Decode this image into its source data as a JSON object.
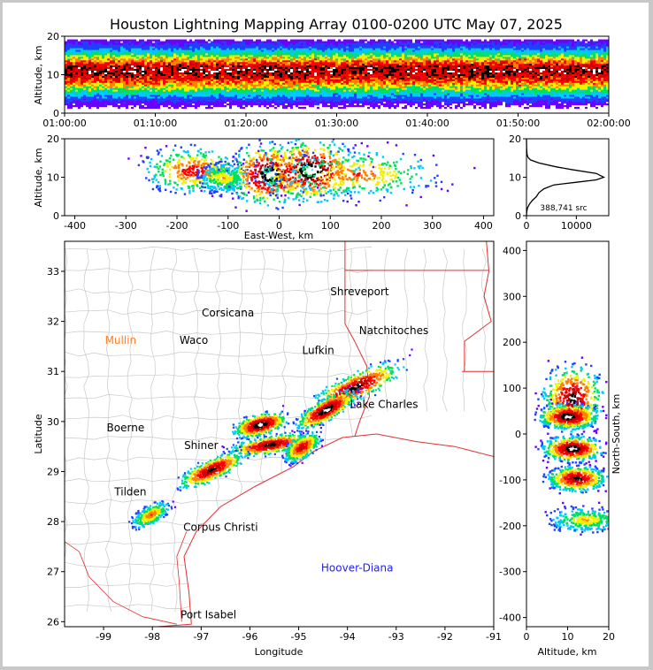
{
  "chart_data": [
    {
      "type": "heatmap",
      "id": "time-altitude",
      "title": "Houston Lightning Mapping Array 0100-0200 UTC May 07, 2025",
      "ylabel": "Altitude, km",
      "xlim": [
        "01:00:00",
        "02:00:00"
      ],
      "ylim": [
        0,
        20
      ],
      "x_ticks": [
        "01:00:00",
        "01:10:00",
        "01:20:00",
        "01:30:00",
        "01:40:00",
        "01:50:00",
        "02:00:00"
      ],
      "y_ticks": [
        0,
        10,
        20
      ],
      "density_profile": [
        {
          "alt": 1,
          "level": 0.05
        },
        {
          "alt": 3,
          "level": 0.15
        },
        {
          "alt": 5,
          "level": 0.35
        },
        {
          "alt": 7,
          "level": 0.6
        },
        {
          "alt": 9,
          "level": 0.85
        },
        {
          "alt": 10,
          "level": 0.95
        },
        {
          "alt": 11,
          "level": 1.0
        },
        {
          "alt": 12,
          "level": 0.95
        },
        {
          "alt": 13,
          "level": 0.8
        },
        {
          "alt": 15,
          "level": 0.5
        },
        {
          "alt": 17,
          "level": 0.25
        },
        {
          "alt": 19,
          "level": 0.1
        }
      ]
    },
    {
      "type": "heatmap",
      "id": "east-west-altitude",
      "xlabel": "East-West, km",
      "ylabel": "Altitude, km",
      "xlim": [
        -420,
        420
      ],
      "ylim": [
        0,
        20
      ],
      "x_ticks": [
        -400,
        -300,
        -200,
        -100,
        0,
        100,
        200,
        300,
        400
      ],
      "y_ticks": [
        0,
        10,
        20
      ],
      "clusters": [
        {
          "x": -170,
          "alt": 12,
          "sx": 30,
          "sy": 3,
          "level": 0.7
        },
        {
          "x": -110,
          "alt": 10,
          "sx": 15,
          "sy": 2,
          "level": 0.5
        },
        {
          "x": -20,
          "alt": 11,
          "sx": 25,
          "sy": 4,
          "level": 1.0
        },
        {
          "x": 60,
          "alt": 12,
          "sx": 30,
          "sy": 4,
          "level": 1.0
        },
        {
          "x": 150,
          "alt": 11,
          "sx": 50,
          "sy": 3,
          "level": 0.6
        }
      ]
    },
    {
      "type": "line",
      "id": "altitude-histogram",
      "annotation": "388,741 src",
      "xlim": [
        0,
        16500
      ],
      "ylim": [
        0,
        20
      ],
      "x_ticks": [
        0,
        10000
      ],
      "y_ticks": [
        0,
        10,
        20
      ],
      "points": [
        [
          0,
          0
        ],
        [
          50,
          1
        ],
        [
          200,
          2
        ],
        [
          600,
          3
        ],
        [
          1200,
          4
        ],
        [
          2000,
          5
        ],
        [
          2500,
          6
        ],
        [
          3500,
          7
        ],
        [
          5500,
          8
        ],
        [
          10000,
          8.7
        ],
        [
          14000,
          9.3
        ],
        [
          15500,
          10
        ],
        [
          14000,
          11
        ],
        [
          9000,
          12
        ],
        [
          6000,
          12.7
        ],
        [
          2500,
          13.7
        ],
        [
          800,
          14.5
        ],
        [
          300,
          15.2
        ],
        [
          100,
          16
        ],
        [
          30,
          17.5
        ],
        [
          0,
          20
        ]
      ]
    },
    {
      "type": "scatter",
      "id": "plan-view",
      "xlabel": "Longitude",
      "ylabel": "Latitude",
      "xlim": [
        -99.8,
        -91
      ],
      "ylim": [
        25.9,
        33.6
      ],
      "x_ticks": [
        -99,
        -98,
        -97,
        -96,
        -95,
        -94,
        -93,
        -92,
        -91
      ],
      "y_ticks": [
        26,
        27,
        28,
        29,
        30,
        31,
        32,
        33
      ],
      "cities": [
        {
          "name": "Shreveport",
          "lon": -93.75,
          "lat": 32.52,
          "color": "#000000"
        },
        {
          "name": "Corsicana",
          "lon": -96.45,
          "lat": 32.1,
          "color": "#000000"
        },
        {
          "name": "Mullin",
          "lon": -98.65,
          "lat": 31.55,
          "color": "#ff7f2a"
        },
        {
          "name": "Waco",
          "lon": -97.15,
          "lat": 31.55,
          "color": "#000000"
        },
        {
          "name": "Natchitoches",
          "lon": -93.05,
          "lat": 31.75,
          "color": "#000000"
        },
        {
          "name": "Lufkin",
          "lon": -94.6,
          "lat": 31.35,
          "color": "#000000"
        },
        {
          "name": "Lake Charles",
          "lon": -93.25,
          "lat": 30.27,
          "color": "#000000"
        },
        {
          "name": "Boerne",
          "lon": -98.55,
          "lat": 29.8,
          "color": "#000000"
        },
        {
          "name": "Shiner",
          "lon": -97.0,
          "lat": 29.45,
          "color": "#000000"
        },
        {
          "name": "Tilden",
          "lon": -98.45,
          "lat": 28.52,
          "color": "#000000"
        },
        {
          "name": "Corpus Christi",
          "lon": -96.6,
          "lat": 27.82,
          "color": "#000000"
        },
        {
          "name": "Hoover-Diana",
          "lon": -93.8,
          "lat": 27.0,
          "color": "#1f1fff"
        },
        {
          "name": "Port Isabel",
          "lon": -96.85,
          "lat": 26.07,
          "color": "#000000"
        }
      ],
      "storms": [
        {
          "lon": -93.85,
          "lat": 30.7,
          "w": 1.7,
          "h": 0.45,
          "rot": -25,
          "level": 0.9
        },
        {
          "lon": -94.45,
          "lat": 30.25,
          "w": 1.1,
          "h": 0.35,
          "rot": -30,
          "level": 1.0
        },
        {
          "lon": -95.8,
          "lat": 29.95,
          "w": 0.9,
          "h": 0.35,
          "rot": -15,
          "level": 1.0
        },
        {
          "lon": -95.6,
          "lat": 29.55,
          "w": 1.4,
          "h": 0.3,
          "rot": -10,
          "level": 0.9
        },
        {
          "lon": -94.95,
          "lat": 29.5,
          "w": 0.7,
          "h": 0.35,
          "rot": -35,
          "level": 0.8
        },
        {
          "lon": -96.8,
          "lat": 29.05,
          "w": 1.2,
          "h": 0.35,
          "rot": -25,
          "level": 0.9
        },
        {
          "lon": -98.05,
          "lat": 28.15,
          "w": 0.7,
          "h": 0.3,
          "rot": -30,
          "level": 0.6
        }
      ],
      "state_border_color": "#e03030",
      "county_line_color": "#c8c8c8"
    },
    {
      "type": "heatmap",
      "id": "altitude-north-south",
      "xlabel": "Altitude, km",
      "ylabel": "North-South, km",
      "xlim": [
        0,
        20
      ],
      "ylim": [
        -420,
        420
      ],
      "x_ticks": [
        0,
        10,
        20
      ],
      "y_ticks": [
        -400,
        -300,
        -200,
        -100,
        0,
        100,
        200,
        300,
        400
      ],
      "clusters": [
        {
          "alt": 11,
          "y": 80,
          "sx": 4,
          "sy": 40,
          "level": 0.9
        },
        {
          "alt": 10,
          "y": 40,
          "sx": 4,
          "sy": 15,
          "level": 1.0
        },
        {
          "alt": 11,
          "y": -30,
          "sx": 4,
          "sy": 15,
          "level": 1.0
        },
        {
          "alt": 12,
          "y": -95,
          "sx": 4,
          "sy": 15,
          "level": 0.9
        },
        {
          "alt": 14,
          "y": -185,
          "sx": 5,
          "sy": 15,
          "level": 0.5
        }
      ]
    }
  ],
  "colors": {
    "scale": [
      "#6a00ff",
      "#2040ff",
      "#00c8ff",
      "#00e060",
      "#f0f000",
      "#ff8000",
      "#ff0000",
      "#c80000",
      "#000000",
      "#ffffff"
    ]
  }
}
